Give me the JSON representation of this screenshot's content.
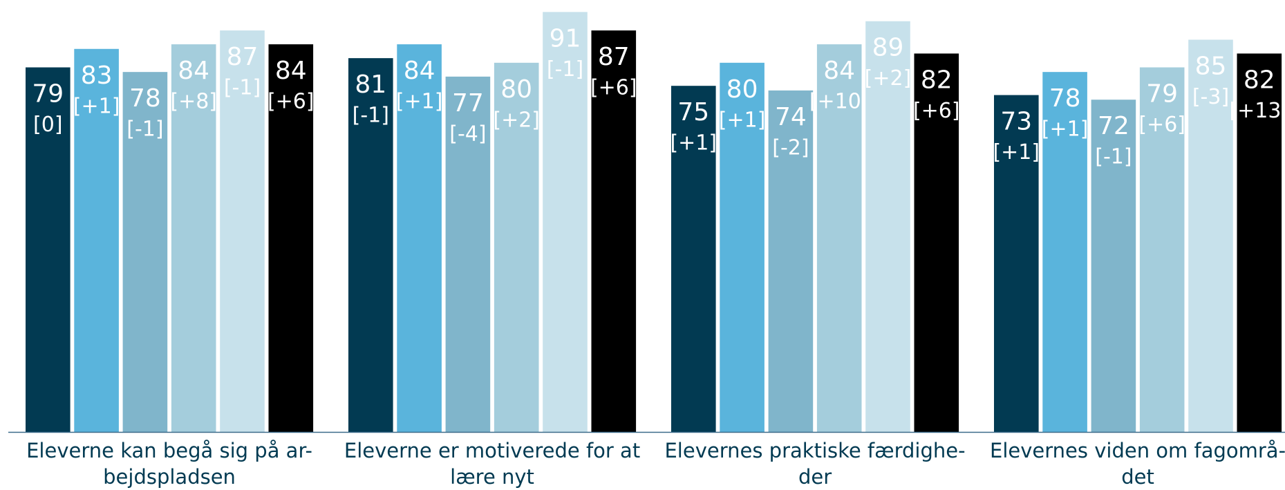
{
  "chart_data": {
    "type": "bar",
    "categories": [
      [
        "Eleverne kan begå sig på ar-",
        "bejdspladsen"
      ],
      [
        "Eleverne er motiverede for at",
        "lære nyt"
      ],
      [
        "Elevernes praktiske færdighe-",
        "der"
      ],
      [
        "Elevernes viden om fagområ-",
        "det"
      ]
    ],
    "series": [
      {
        "color": "#023a52",
        "values": [
          79,
          81,
          75,
          73
        ],
        "change_labels": [
          "[0]",
          "[-1]",
          "[+1]",
          "[+1]"
        ]
      },
      {
        "color": "#5ab4dc",
        "values": [
          83,
          84,
          80,
          78
        ],
        "change_labels": [
          "[+1]",
          "[+1]",
          "[+1]",
          "[+1]"
        ]
      },
      {
        "color": "#80b5cb",
        "values": [
          78,
          77,
          74,
          72
        ],
        "change_labels": [
          "[-1]",
          "[-4]",
          "[-2]",
          "[-1]"
        ]
      },
      {
        "color": "#a4cddc",
        "values": [
          84,
          80,
          84,
          79
        ],
        "change_labels": [
          "[+8]",
          "[+2]",
          "[+10]",
          "[+6]"
        ]
      },
      {
        "color": "#c7e1eb",
        "values": [
          87,
          91,
          89,
          85
        ],
        "change_labels": [
          "[-1]",
          "[-1]",
          "[+2]",
          "[-3]"
        ]
      },
      {
        "color": "#000000",
        "values": [
          84,
          87,
          82,
          82
        ],
        "change_labels": [
          "[+6]",
          "[+6]",
          "[+6]",
          "[+13]"
        ]
      }
    ],
    "ylim": [
      0,
      93.6
    ],
    "axis_color": "#3b6a8a",
    "label_color": "#ffffff",
    "category_color": "#023a52"
  }
}
